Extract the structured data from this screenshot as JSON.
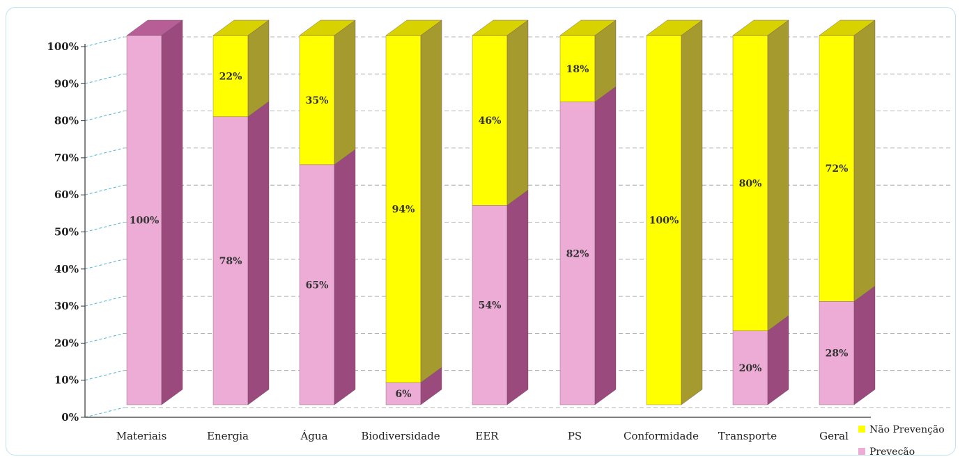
{
  "chart_data": {
    "type": "bar",
    "stacked": true,
    "percent": true,
    "categories": [
      "Materiais",
      "Energia",
      "Água",
      "Biodiversidade",
      "EER",
      "PS",
      "Conformidade",
      "Transporte",
      "Geral"
    ],
    "series": [
      {
        "name": "Prevecão",
        "values": [
          100,
          78,
          65,
          6,
          54,
          82,
          0,
          20,
          28
        ],
        "labels": [
          "100%",
          "78%",
          "65%",
          "6%",
          "54%",
          "82%",
          "",
          "20%",
          "28%"
        ]
      },
      {
        "name": "Não Prevenção",
        "values": [
          0,
          22,
          35,
          94,
          46,
          18,
          100,
          80,
          72
        ],
        "labels": [
          "",
          "22%",
          "35%",
          "94%",
          "46%",
          "18%",
          "100%",
          "80%",
          "72%"
        ]
      }
    ],
    "y_ticks": [
      "0%",
      "10%",
      "20%",
      "30%",
      "40%",
      "50%",
      "60%",
      "70%",
      "80%",
      "90%",
      "100%"
    ],
    "ylim": [
      0,
      100
    ],
    "legend": [
      {
        "label": "Não Prevenção",
        "color": "#ffff00"
      },
      {
        "label": "Prevecão",
        "color": "#ecacd6"
      }
    ],
    "legend_position": "bottom-right",
    "grid": true,
    "colors": {
      "pink_front": "#ecacd6",
      "pink_side": "#9b4a7e",
      "pink_top": "#b85e96",
      "yellow_front": "#ffff00",
      "yellow_side": "#a49a2e",
      "yellow_top": "#d8d200"
    }
  }
}
